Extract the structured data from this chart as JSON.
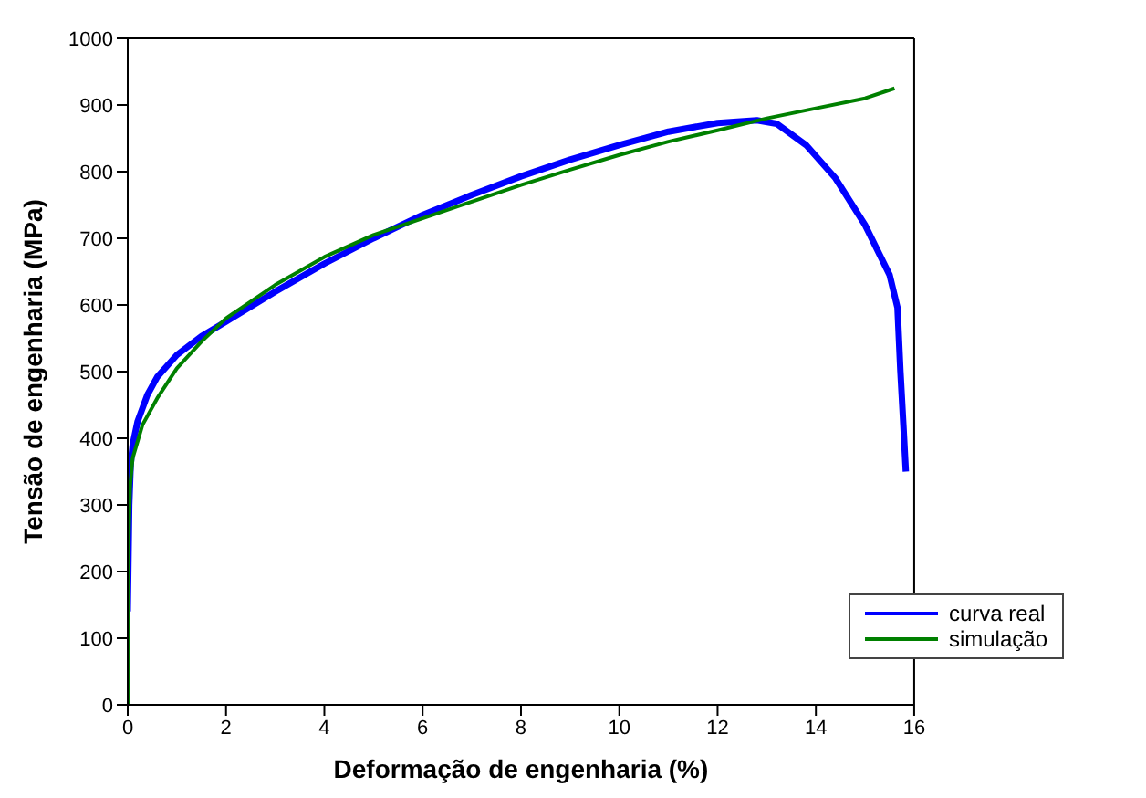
{
  "chart_data": {
    "type": "line",
    "xlabel": "Deformação de engenharia (%)",
    "ylabel": "Tensão de engenharia (MPa)",
    "xlim": [
      0,
      16
    ],
    "xticks": [
      0,
      2,
      4,
      6,
      8,
      10,
      12,
      14,
      16
    ],
    "ylim": [
      0,
      1000
    ],
    "yticks": [
      0,
      100,
      200,
      300,
      400,
      500,
      600,
      700,
      800,
      900,
      1000
    ],
    "legend": "bottom right",
    "series": [
      {
        "name": "curva real",
        "color": "#0000ff",
        "x": [
          0,
          0.03,
          0.06,
          0.1,
          0.2,
          0.4,
          0.6,
          1,
          1.5,
          2,
          3,
          4,
          5,
          6,
          7,
          8,
          9,
          10,
          11,
          12,
          12.8,
          13.2,
          13.8,
          14.4,
          15,
          15.5,
          15.66,
          15.72,
          15.78,
          15.83
        ],
        "values": [
          140,
          300,
          360,
          390,
          425,
          465,
          492,
          525,
          553,
          575,
          620,
          662,
          700,
          735,
          765,
          793,
          818,
          840,
          860,
          873,
          877,
          872,
          840,
          790,
          720,
          645,
          596,
          500,
          420,
          350
        ]
      },
      {
        "name": "simulação",
        "color": "#008000",
        "x": [
          0,
          0.02,
          0.05,
          0.1,
          0.3,
          0.6,
          1,
          1.5,
          2,
          3,
          4,
          5,
          6,
          7,
          8,
          9,
          10,
          11,
          12,
          13,
          14,
          15,
          15.6
        ],
        "values": [
          0,
          250,
          330,
          370,
          420,
          460,
          505,
          545,
          580,
          630,
          672,
          705,
          730,
          755,
          780,
          803,
          825,
          845,
          862,
          880,
          895,
          910,
          925
        ]
      }
    ]
  }
}
